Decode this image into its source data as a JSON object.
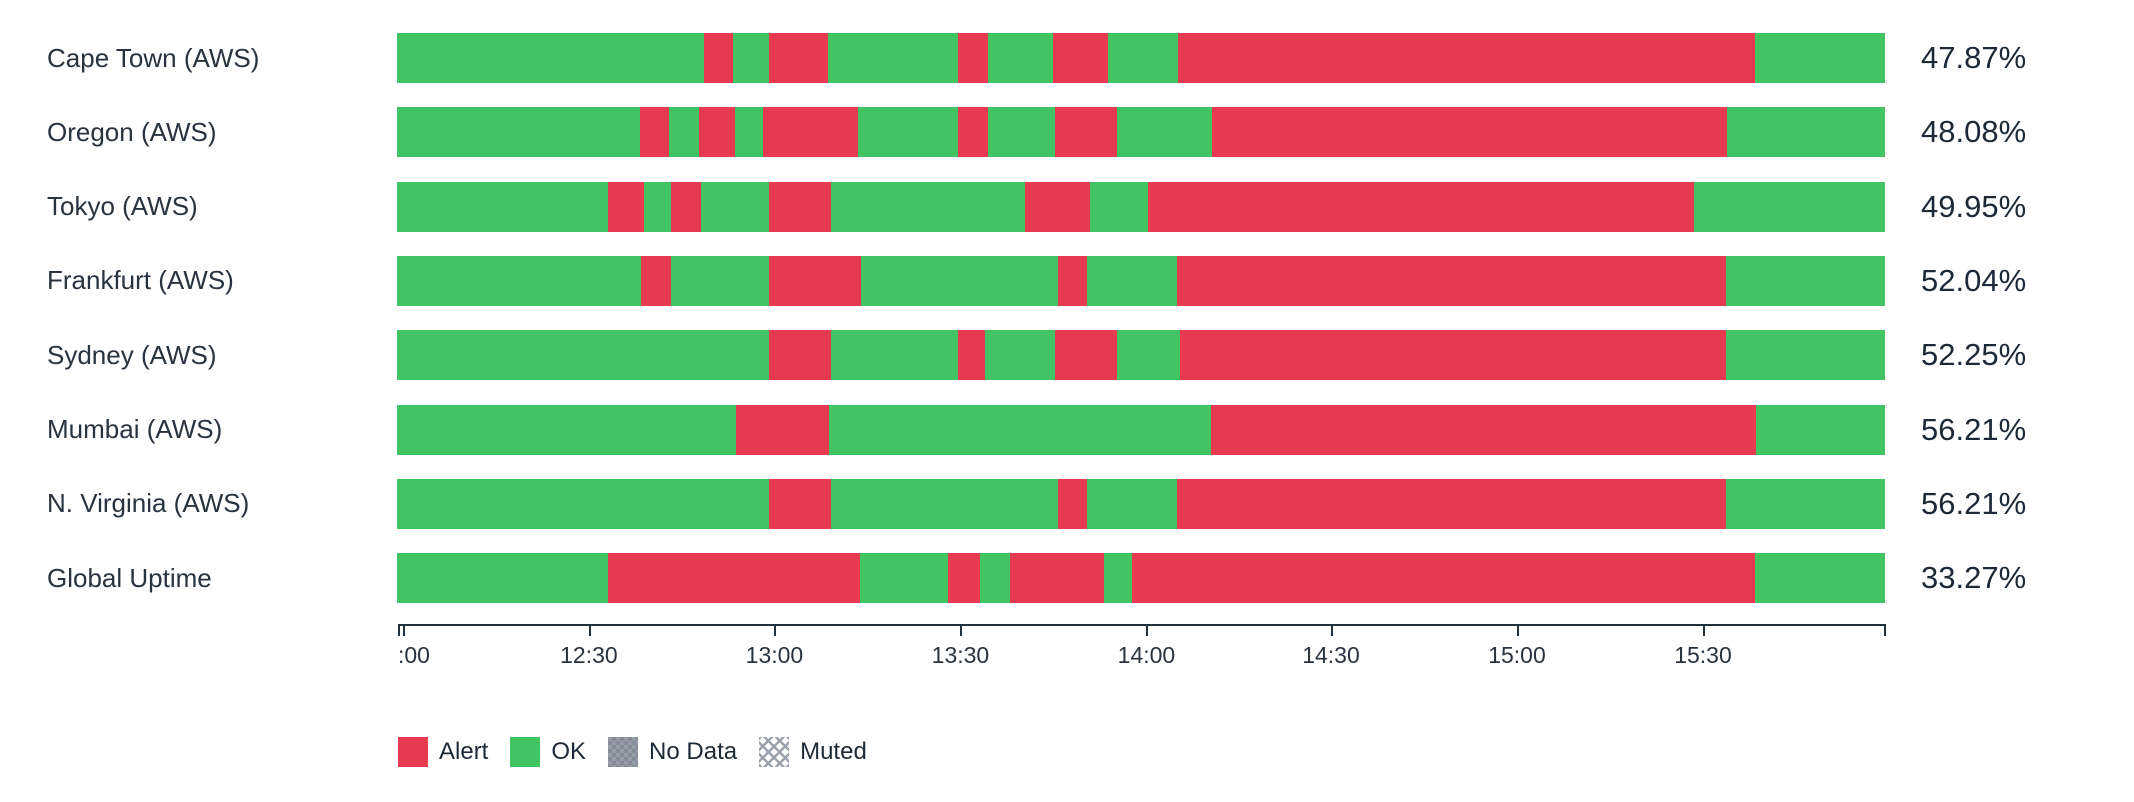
{
  "chart_data": {
    "type": "status-history",
    "title": "",
    "colors": {
      "alert": "#e63a50",
      "ok": "#42c364",
      "no_data": "#8b929c",
      "muted_hatch": "#9aa1ab",
      "text": "#28333f",
      "axis": "#222f3d"
    },
    "x_axis": {
      "edge_ticks_pct": [
        0,
        100
      ],
      "ticks": [
        {
          "label": ":00",
          "pct": 0.35
        },
        {
          "label": "12:30",
          "pct": 12.83
        },
        {
          "label": "13:00",
          "pct": 25.3
        },
        {
          "label": "13:30",
          "pct": 37.8
        },
        {
          "label": "14:00",
          "pct": 50.3
        },
        {
          "label": "14:30",
          "pct": 62.7
        },
        {
          "label": "15:00",
          "pct": 75.2
        },
        {
          "label": "15:30",
          "pct": 87.7
        }
      ]
    },
    "rows": [
      {
        "label": "Cape Town (AWS)",
        "uptime": "47.87%",
        "segments": [
          {
            "status": "ok",
            "pct": 20.6
          },
          {
            "status": "alert",
            "pct": 2.0
          },
          {
            "status": "ok",
            "pct": 2.4
          },
          {
            "status": "alert",
            "pct": 4.0
          },
          {
            "status": "ok",
            "pct": 8.7
          },
          {
            "status": "alert",
            "pct": 2.0
          },
          {
            "status": "ok",
            "pct": 4.4
          },
          {
            "status": "alert",
            "pct": 3.7
          },
          {
            "status": "ok",
            "pct": 4.7
          },
          {
            "status": "alert",
            "pct": 38.8
          },
          {
            "status": "ok",
            "pct": 8.7
          }
        ]
      },
      {
        "label": "Oregon (AWS)",
        "uptime": "48.08%",
        "segments": [
          {
            "status": "ok",
            "pct": 16.3
          },
          {
            "status": "alert",
            "pct": 2.0
          },
          {
            "status": "ok",
            "pct": 2.0
          },
          {
            "status": "alert",
            "pct": 2.4
          },
          {
            "status": "ok",
            "pct": 1.9
          },
          {
            "status": "alert",
            "pct": 6.4
          },
          {
            "status": "ok",
            "pct": 6.7
          },
          {
            "status": "alert",
            "pct": 2.0
          },
          {
            "status": "ok",
            "pct": 4.5
          },
          {
            "status": "alert",
            "pct": 4.2
          },
          {
            "status": "ok",
            "pct": 6.4
          },
          {
            "status": "alert",
            "pct": 34.6
          },
          {
            "status": "ok",
            "pct": 10.6
          }
        ]
      },
      {
        "label": "Tokyo (AWS)",
        "uptime": "49.95%",
        "segments": [
          {
            "status": "ok",
            "pct": 14.2
          },
          {
            "status": "alert",
            "pct": 2.4
          },
          {
            "status": "ok",
            "pct": 1.8
          },
          {
            "status": "alert",
            "pct": 2.0
          },
          {
            "status": "ok",
            "pct": 4.6
          },
          {
            "status": "alert",
            "pct": 4.2
          },
          {
            "status": "ok",
            "pct": 13.0
          },
          {
            "status": "alert",
            "pct": 4.4
          },
          {
            "status": "ok",
            "pct": 3.9
          },
          {
            "status": "alert",
            "pct": 36.7
          },
          {
            "status": "ok",
            "pct": 12.8
          }
        ]
      },
      {
        "label": "Frankfurt (AWS)",
        "uptime": "52.04%",
        "segments": [
          {
            "status": "ok",
            "pct": 16.4
          },
          {
            "status": "alert",
            "pct": 2.0
          },
          {
            "status": "ok",
            "pct": 6.6
          },
          {
            "status": "alert",
            "pct": 6.2
          },
          {
            "status": "ok",
            "pct": 13.2
          },
          {
            "status": "alert",
            "pct": 2.0
          },
          {
            "status": "ok",
            "pct": 6.0
          },
          {
            "status": "alert",
            "pct": 36.9
          },
          {
            "status": "ok",
            "pct": 10.7
          }
        ]
      },
      {
        "label": "Sydney (AWS)",
        "uptime": "52.25%",
        "segments": [
          {
            "status": "ok",
            "pct": 25.0
          },
          {
            "status": "alert",
            "pct": 4.2
          },
          {
            "status": "ok",
            "pct": 8.5
          },
          {
            "status": "alert",
            "pct": 1.8
          },
          {
            "status": "ok",
            "pct": 4.7
          },
          {
            "status": "alert",
            "pct": 4.2
          },
          {
            "status": "ok",
            "pct": 4.2
          },
          {
            "status": "alert",
            "pct": 36.7
          },
          {
            "status": "ok",
            "pct": 10.7
          }
        ]
      },
      {
        "label": "Mumbai (AWS)",
        "uptime": "56.21%",
        "segments": [
          {
            "status": "ok",
            "pct": 22.8
          },
          {
            "status": "alert",
            "pct": 6.2
          },
          {
            "status": "ok",
            "pct": 25.7
          },
          {
            "status": "alert",
            "pct": 36.6
          },
          {
            "status": "ok",
            "pct": 8.7
          }
        ]
      },
      {
        "label": "N. Virginia (AWS)",
        "uptime": "56.21%",
        "segments": [
          {
            "status": "ok",
            "pct": 25.0
          },
          {
            "status": "alert",
            "pct": 4.2
          },
          {
            "status": "ok",
            "pct": 15.2
          },
          {
            "status": "alert",
            "pct": 2.0
          },
          {
            "status": "ok",
            "pct": 6.0
          },
          {
            "status": "alert",
            "pct": 36.9
          },
          {
            "status": "ok",
            "pct": 10.7
          }
        ]
      },
      {
        "label": "Global Uptime",
        "uptime": "33.27%",
        "segments": [
          {
            "status": "ok",
            "pct": 14.2
          },
          {
            "status": "alert",
            "pct": 16.9
          },
          {
            "status": "ok",
            "pct": 5.9
          },
          {
            "status": "alert",
            "pct": 2.2
          },
          {
            "status": "ok",
            "pct": 2.0
          },
          {
            "status": "alert",
            "pct": 6.3
          },
          {
            "status": "ok",
            "pct": 1.9
          },
          {
            "status": "alert",
            "pct": 41.9
          },
          {
            "status": "ok",
            "pct": 8.7
          }
        ]
      }
    ],
    "legend": [
      {
        "label": "Alert",
        "style": "alert"
      },
      {
        "label": "OK",
        "style": "ok"
      },
      {
        "label": "No Data",
        "style": "nodata"
      },
      {
        "label": "Muted",
        "style": "muted"
      }
    ]
  }
}
